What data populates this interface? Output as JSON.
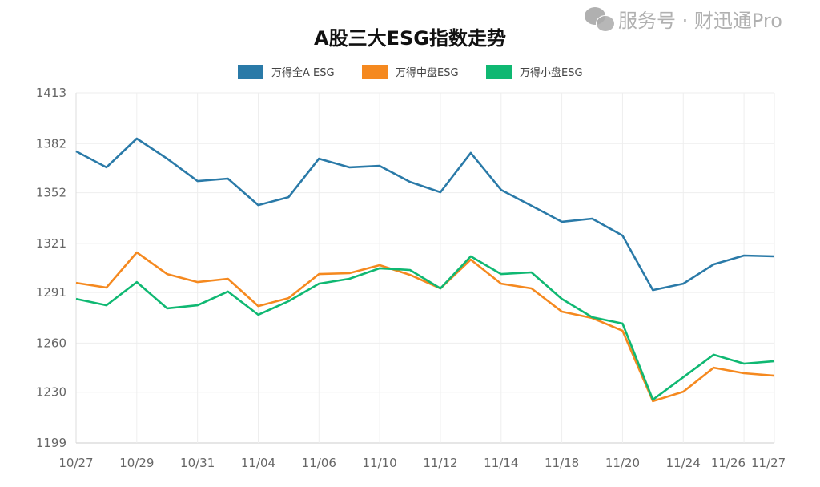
{
  "chart_data": {
    "type": "line",
    "title": "A股三大ESG指数走势",
    "xlabel": "",
    "ylabel": "",
    "ylim": [
      1199,
      1413
    ],
    "yticks": [
      1199,
      1230,
      1260,
      1291,
      1321,
      1352,
      1382,
      1413
    ],
    "grid": true,
    "legend_position": "top-center",
    "x": [
      "10/27",
      "10/28",
      "10/29",
      "10/30",
      "10/31",
      "11/03",
      "11/04",
      "11/05",
      "11/06",
      "11/07",
      "11/10",
      "11/11",
      "11/12",
      "11/13",
      "11/14",
      "11/17",
      "11/18",
      "11/19",
      "11/20",
      "11/21",
      "11/24",
      "11/25",
      "11/26",
      "11/27"
    ],
    "xtick_labels": [
      "10/27",
      "10/29",
      "10/31",
      "11/04",
      "11/06",
      "11/10",
      "11/12",
      "11/14",
      "11/18",
      "11/20",
      "11/24",
      "11/26",
      "11/27"
    ],
    "series": [
      {
        "name": "万得全A ESG",
        "color": "#2a7aa8",
        "values": [
          1377.3,
          1367.5,
          1385.1,
          1372.8,
          1359.1,
          1360.6,
          1344.4,
          1349.3,
          1372.8,
          1367.5,
          1368.4,
          1358.6,
          1352.3,
          1376.3,
          1353.7,
          1344.0,
          1334.2,
          1336.1,
          1325.8,
          1292.5,
          1296.4,
          1308.2,
          1313.6,
          1313.1
        ]
      },
      {
        "name": "万得中盘ESG",
        "color": "#f5891f",
        "values": [
          1296.9,
          1294.0,
          1315.5,
          1302.3,
          1297.4,
          1299.4,
          1282.7,
          1287.6,
          1302.3,
          1302.8,
          1307.7,
          1301.8,
          1293.5,
          1311.1,
          1296.4,
          1293.5,
          1279.3,
          1275.4,
          1267.6,
          1224.5,
          1230.3,
          1245.0,
          1241.6,
          1240.1
        ]
      },
      {
        "name": "万得小盘ESG",
        "color": "#0fb872",
        "values": [
          1287.1,
          1283.2,
          1297.4,
          1281.3,
          1283.2,
          1291.6,
          1277.4,
          1285.7,
          1296.4,
          1299.4,
          1305.8,
          1304.8,
          1293.5,
          1313.1,
          1302.3,
          1303.3,
          1287.1,
          1275.9,
          1272.0,
          1225.4,
          1239.2,
          1252.9,
          1247.5,
          1249.0
        ]
      }
    ]
  },
  "watermark": "服务号 · 财迅通Pro"
}
